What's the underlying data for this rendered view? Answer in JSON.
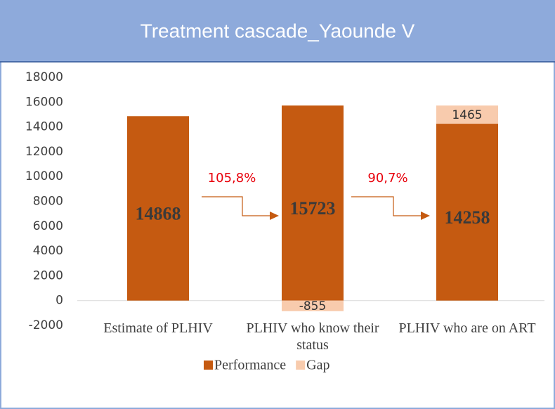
{
  "chart_data": {
    "type": "bar",
    "stacked": true,
    "title": "Treatment cascade_Yaounde V",
    "categories": [
      "Estimate of PLHIV",
      "PLHIV who know their status",
      "PLHIV who are on ART"
    ],
    "series": [
      {
        "name": "Performance",
        "color": "#c55a11",
        "values": [
          14868,
          15723,
          14258
        ]
      },
      {
        "name": "Gap",
        "color": "#f8cbad",
        "values": [
          null,
          -855,
          1465
        ]
      }
    ],
    "ylim": [
      -2000,
      18000
    ],
    "yticks": [
      -2000,
      0,
      2000,
      4000,
      6000,
      8000,
      10000,
      12000,
      14000,
      16000,
      18000
    ],
    "annotations": [
      "105,8%",
      "90,7%"
    ],
    "legend": "bottom"
  }
}
